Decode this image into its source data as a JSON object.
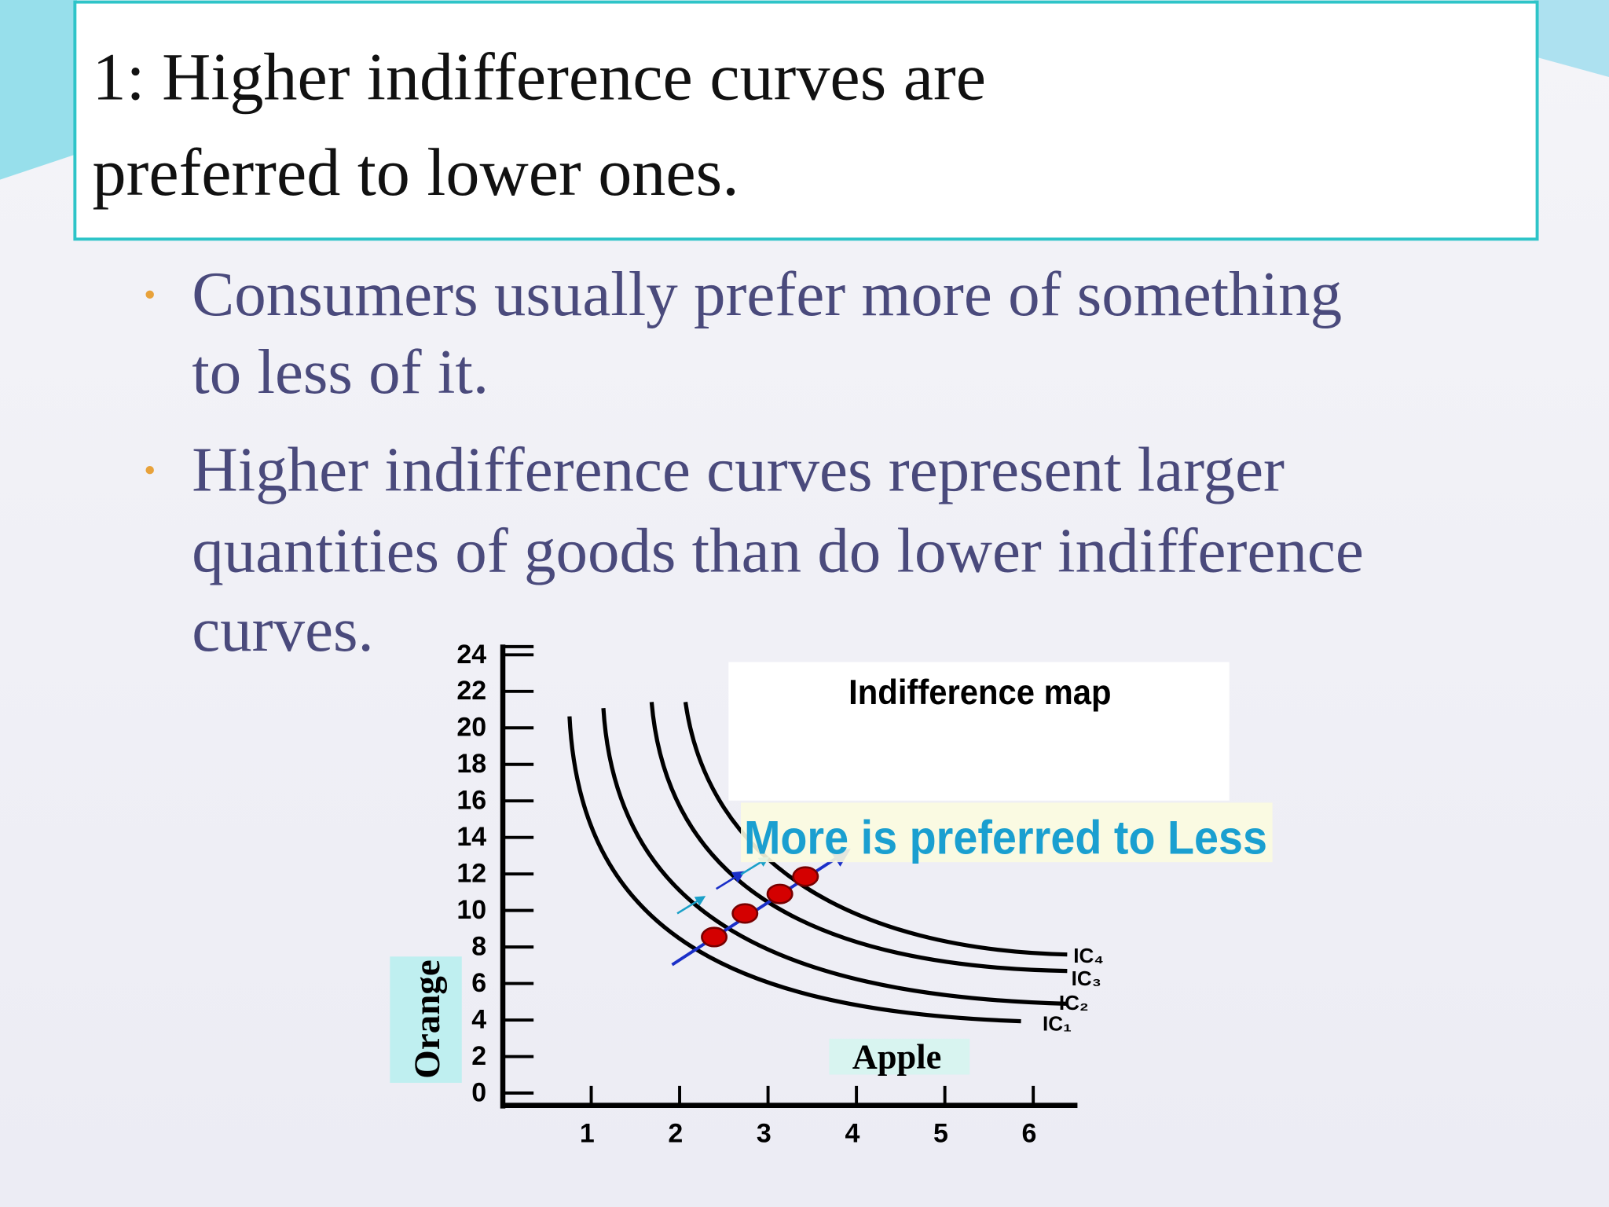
{
  "title": [
    "1: Higher indifference curves are",
    "preferred to lower ones."
  ],
  "bullets": [
    [
      "Consumers usually prefer more of something",
      "to less of it."
    ],
    [
      "Higher indifference curves represent larger",
      "quantities of goods than do lower indifference",
      "curves."
    ]
  ],
  "chart_data": {
    "type": "line",
    "title": "Indifference map",
    "annotation": "More is preferred to Less",
    "x_label": "Apple",
    "y_label": "Orange",
    "xlim": [
      0,
      6.5
    ],
    "xticks": [
      1,
      2,
      3,
      4,
      5,
      6
    ],
    "ylim": [
      0,
      24
    ],
    "yticks": [
      0,
      2,
      4,
      6,
      8,
      10,
      12,
      14,
      16,
      18,
      20,
      22,
      24
    ],
    "curve_labels": [
      "IC₄",
      "IC₃",
      "IC₂",
      "IC₁"
    ]
  }
}
